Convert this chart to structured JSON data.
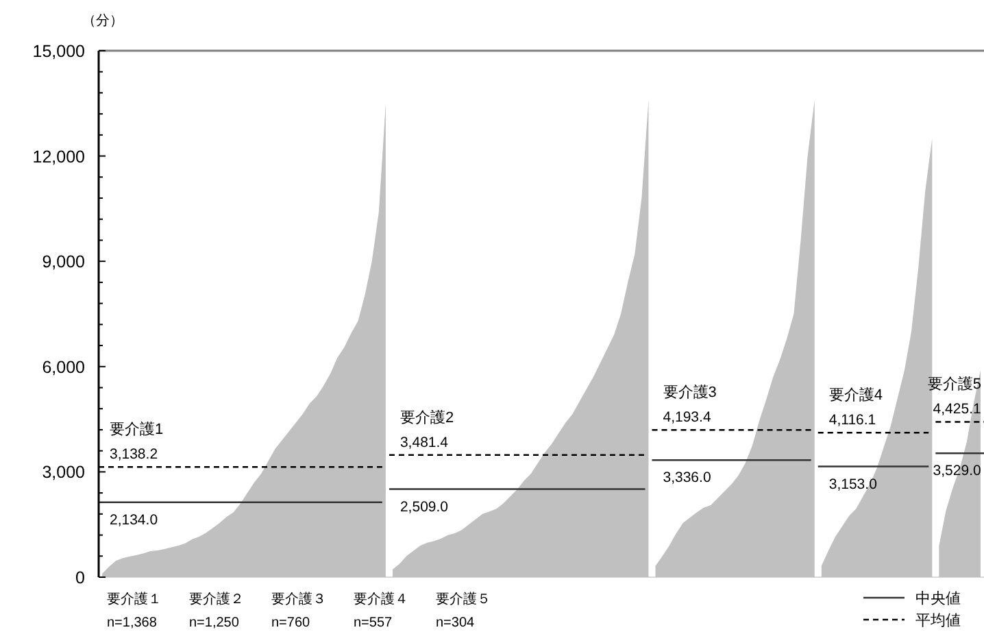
{
  "chart_data": {
    "type": "area",
    "ylabel": "（分）",
    "categories": [
      null,
      null,
      null,
      null,
      null,
      null,
      null,
      null,
      null,
      null,
      null,
      null,
      null,
      null,
      null,
      null,
      null,
      null,
      null,
      null,
      null,
      null,
      null,
      null,
      null,
      null,
      null,
      null,
      null,
      null,
      null,
      null,
      null,
      null,
      null,
      null,
      null,
      null,
      null,
      null,
      null,
      null,
      null,
      null,
      null,
      null,
      null,
      null,
      null,
      null,
      null,
      null,
      null,
      null,
      null,
      null,
      null,
      null,
      null,
      null,
      null,
      null,
      null,
      null,
      null,
      null,
      null,
      null,
      null,
      null,
      null,
      null,
      null,
      null,
      null,
      null,
      null,
      null,
      null,
      null,
      null,
      null,
      null,
      null,
      null,
      null,
      null,
      null,
      null,
      null,
      null,
      null,
      null,
      null,
      null,
      null,
      null,
      null,
      null,
      null,
      null,
      null,
      null,
      null,
      null,
      null,
      null,
      null,
      null,
      null,
      null,
      null,
      null,
      null,
      null,
      null,
      null,
      null,
      null,
      null,
      null,
      null,
      null,
      null,
      null,
      null,
      null,
      null
    ],
    "tick_labels": "y",
    "ylim": [
      0,
      15000
    ],
    "yticks": [
      {
        "value": 0,
        "label": "0"
      },
      {
        "value": 600,
        "label": null
      },
      {
        "value": 1200,
        "label": null
      },
      {
        "value": 1800,
        "label": null
      },
      {
        "value": 2400,
        "label": null
      },
      {
        "value": 3000,
        "label": "3,000"
      },
      {
        "value": 3600,
        "label": null
      },
      {
        "value": 4200,
        "label": null
      },
      {
        "value": 4800,
        "label": null
      },
      {
        "value": 5400,
        "label": null
      },
      {
        "value": 6000,
        "label": "6,000"
      },
      {
        "value": 6600,
        "label": null
      },
      {
        "value": 7200,
        "label": null
      },
      {
        "value": 7800,
        "label": null
      },
      {
        "value": 8400,
        "label": null
      },
      {
        "value": 9000,
        "label": "9,000"
      },
      {
        "value": 9600,
        "label": null
      },
      {
        "value": 10200,
        "label": null
      },
      {
        "value": 10800,
        "label": null
      },
      {
        "value": 11400,
        "label": null
      },
      {
        "value": 12000,
        "label": "12,000"
      },
      {
        "value": 12600,
        "label": null
      },
      {
        "value": 13200,
        "label": null
      },
      {
        "value": 13800,
        "label": null
      },
      {
        "value": 14400,
        "label": null
      },
      {
        "value": 15000,
        "label": "15,000"
      }
    ],
    "legend": "bottom right",
    "series": [
      {
        "color": "#c0c0c0",
        "values": [
          100,
          300,
          470,
          540,
          590,
          630,
          680,
          740,
          760,
          800,
          850,
          900,
          960,
          1080,
          1150,
          1260,
          1400,
          1550,
          1720,
          1850,
          2100,
          2400,
          2700,
          2950,
          3300,
          3650,
          3900,
          4150,
          4400,
          4650,
          4950,
          5150,
          5450,
          5800,
          6250,
          6550,
          6950,
          7300,
          8050,
          9000,
          10400,
          13500,
          null,
          null,
          null,
          null,
          null,
          null,
          null,
          null,
          null,
          null,
          null,
          null,
          null,
          null,
          null,
          null,
          null,
          null,
          null,
          null,
          null,
          null,
          null,
          null,
          null,
          null,
          null,
          null,
          null,
          null,
          null,
          null,
          null,
          null,
          null,
          null,
          null,
          null,
          null,
          null,
          null,
          null,
          null,
          null,
          null,
          null,
          null,
          null,
          null,
          null,
          null,
          null,
          null,
          null,
          null,
          null,
          null,
          null,
          null,
          null,
          null,
          null,
          null,
          null,
          null,
          null,
          null,
          null,
          null,
          null,
          null,
          null,
          null,
          null,
          null,
          null,
          null,
          null,
          null,
          null,
          null,
          null,
          null,
          null,
          null,
          null
        ]
      },
      {
        "color": "#c0c0c0",
        "values": [
          null,
          null,
          null,
          null,
          null,
          null,
          null,
          null,
          null,
          null,
          null,
          null,
          null,
          null,
          null,
          null,
          null,
          null,
          null,
          null,
          null,
          null,
          null,
          null,
          null,
          null,
          null,
          null,
          null,
          null,
          null,
          null,
          null,
          null,
          null,
          null,
          null,
          null,
          null,
          null,
          null,
          null,
          220,
          380,
          600,
          750,
          900,
          980,
          1030,
          1100,
          1200,
          1250,
          1350,
          1500,
          1650,
          1800,
          1870,
          1950,
          2100,
          2300,
          2500,
          2750,
          2950,
          3250,
          3550,
          3800,
          4100,
          4400,
          4650,
          5000,
          5350,
          5700,
          6100,
          6500,
          6900,
          7500,
          8400,
          9200,
          10800,
          13600,
          null,
          null,
          null,
          null,
          null,
          null,
          null,
          null,
          null,
          null,
          null,
          null,
          null,
          null,
          null,
          null,
          null,
          null,
          null,
          null,
          null,
          null,
          null,
          null,
          null,
          null,
          null,
          null,
          null,
          null,
          null,
          null,
          null,
          null,
          null,
          null,
          null,
          null,
          null,
          null,
          null,
          null,
          null,
          null,
          null,
          null,
          null,
          null
        ]
      },
      {
        "color": "#c0c0c0",
        "values": [
          null,
          null,
          null,
          null,
          null,
          null,
          null,
          null,
          null,
          null,
          null,
          null,
          null,
          null,
          null,
          null,
          null,
          null,
          null,
          null,
          null,
          null,
          null,
          null,
          null,
          null,
          null,
          null,
          null,
          null,
          null,
          null,
          null,
          null,
          null,
          null,
          null,
          null,
          null,
          null,
          null,
          null,
          null,
          null,
          null,
          null,
          null,
          null,
          null,
          null,
          null,
          null,
          null,
          null,
          null,
          null,
          null,
          null,
          null,
          null,
          null,
          null,
          null,
          null,
          null,
          null,
          null,
          null,
          null,
          null,
          null,
          null,
          null,
          null,
          null,
          null,
          null,
          null,
          null,
          null,
          320,
          600,
          900,
          1250,
          1550,
          1700,
          1850,
          1980,
          2050,
          2250,
          2450,
          2650,
          2900,
          3250,
          3750,
          4450,
          5050,
          5700,
          6200,
          6800,
          7500,
          9600,
          12000,
          13600,
          null,
          null,
          null,
          null,
          null,
          null,
          null,
          null,
          null,
          null,
          null,
          null,
          null,
          null,
          null,
          null,
          null,
          null,
          null,
          null,
          null,
          null,
          null,
          null
        ]
      },
      {
        "color": "#c0c0c0",
        "values": [
          null,
          null,
          null,
          null,
          null,
          null,
          null,
          null,
          null,
          null,
          null,
          null,
          null,
          null,
          null,
          null,
          null,
          null,
          null,
          null,
          null,
          null,
          null,
          null,
          null,
          null,
          null,
          null,
          null,
          null,
          null,
          null,
          null,
          null,
          null,
          null,
          null,
          null,
          null,
          null,
          null,
          null,
          null,
          null,
          null,
          null,
          null,
          null,
          null,
          null,
          null,
          null,
          null,
          null,
          null,
          null,
          null,
          null,
          null,
          null,
          null,
          null,
          null,
          null,
          null,
          null,
          null,
          null,
          null,
          null,
          null,
          null,
          null,
          null,
          null,
          null,
          null,
          null,
          null,
          null,
          null,
          null,
          null,
          null,
          null,
          null,
          null,
          null,
          null,
          null,
          null,
          null,
          null,
          null,
          null,
          null,
          null,
          null,
          null,
          null,
          null,
          null,
          null,
          null,
          320,
          750,
          1150,
          1450,
          1750,
          1950,
          2300,
          2650,
          3100,
          3700,
          4300,
          5100,
          5900,
          7000,
          8800,
          11000,
          12500,
          null,
          null,
          null,
          null,
          null,
          null,
          null
        ]
      },
      {
        "color": "#c0c0c0",
        "values": [
          null,
          null,
          null,
          null,
          null,
          null,
          null,
          null,
          null,
          null,
          null,
          null,
          null,
          null,
          null,
          null,
          null,
          null,
          null,
          null,
          null,
          null,
          null,
          null,
          null,
          null,
          null,
          null,
          null,
          null,
          null,
          null,
          null,
          null,
          null,
          null,
          null,
          null,
          null,
          null,
          null,
          null,
          null,
          null,
          null,
          null,
          null,
          null,
          null,
          null,
          null,
          null,
          null,
          null,
          null,
          null,
          null,
          null,
          null,
          null,
          null,
          null,
          null,
          null,
          null,
          null,
          null,
          null,
          null,
          null,
          null,
          null,
          null,
          null,
          null,
          null,
          null,
          null,
          null,
          null,
          null,
          null,
          null,
          null,
          null,
          null,
          null,
          null,
          null,
          null,
          null,
          null,
          null,
          null,
          null,
          null,
          null,
          null,
          null,
          null,
          null,
          null,
          null,
          null,
          null,
          null,
          null,
          null,
          null,
          null,
          null,
          null,
          null,
          null,
          null,
          null,
          null,
          null,
          null,
          null,
          null,
          900,
          1900,
          2550,
          3100,
          3850,
          4950,
          5900
        ]
      },
      {
        "name": "中央値",
        "type": "line",
        "line_style": "solid",
        "color": "#333333",
        "values": [
          2134,
          2134,
          2134,
          2134,
          2134,
          2134,
          2134,
          2134,
          2134,
          2134,
          2134,
          2134,
          2134,
          2134,
          2134,
          2134,
          2134,
          2134,
          2134,
          2134,
          2134,
          2134,
          2134,
          2134,
          2134,
          2134,
          2134,
          2134,
          2134,
          2134,
          2134,
          2134,
          2134,
          2134,
          2134,
          2134,
          2134,
          2134,
          2134,
          2134,
          2134,
          null,
          2509,
          2509,
          2509,
          2509,
          2509,
          2509,
          2509,
          2509,
          2509,
          2509,
          2509,
          2509,
          2509,
          2509,
          2509,
          2509,
          2509,
          2509,
          2509,
          2509,
          2509,
          2509,
          2509,
          2509,
          2509,
          2509,
          2509,
          2509,
          2509,
          2509,
          2509,
          2509,
          2509,
          2509,
          2509,
          2509,
          2509,
          null,
          3336,
          3336,
          3336,
          3336,
          3336,
          3336,
          3336,
          3336,
          3336,
          3336,
          3336,
          3336,
          3336,
          3336,
          3336,
          3336,
          3336,
          3336,
          3336,
          3336,
          3336,
          3336,
          3336,
          null,
          3153,
          3153,
          3153,
          3153,
          3153,
          3153,
          3153,
          3153,
          3153,
          3153,
          3153,
          3153,
          3153,
          3153,
          3153,
          3153,
          null,
          3529,
          3529,
          3529,
          3529,
          3529,
          3529,
          3529
        ],
        "value_labels": [
          "2,134.0",
          null,
          null,
          null,
          null,
          null,
          null,
          null,
          null,
          null,
          null,
          null,
          null,
          null,
          null,
          null,
          null,
          null,
          null,
          null,
          null,
          null,
          null,
          null,
          null,
          null,
          null,
          null,
          null,
          null,
          null,
          null,
          null,
          null,
          null,
          null,
          null,
          null,
          null,
          null,
          null,
          null,
          "2,509.0",
          null,
          null,
          null,
          null,
          null,
          null,
          null,
          null,
          null,
          null,
          null,
          null,
          null,
          null,
          null,
          null,
          null,
          null,
          null,
          null,
          null,
          null,
          null,
          null,
          null,
          null,
          null,
          null,
          null,
          null,
          null,
          null,
          null,
          null,
          null,
          null,
          null,
          "3,336.0",
          null,
          null,
          null,
          null,
          null,
          null,
          null,
          null,
          null,
          null,
          null,
          null,
          null,
          null,
          null,
          null,
          null,
          null,
          null,
          null,
          null,
          null,
          null,
          "3,153.0",
          null,
          null,
          null,
          null,
          null,
          null,
          null,
          null,
          null,
          null,
          null,
          null,
          null,
          null,
          null,
          null,
          "3,529.0",
          null,
          null,
          null,
          null,
          null,
          null
        ]
      },
      {
        "name": "平均値",
        "type": "line",
        "line_style": "dashed",
        "color": "#000000",
        "values": [
          3138.2,
          3138.2,
          3138.2,
          3138.2,
          3138.2,
          3138.2,
          3138.2,
          3138.2,
          3138.2,
          3138.2,
          3138.2,
          3138.2,
          3138.2,
          3138.2,
          3138.2,
          3138.2,
          3138.2,
          3138.2,
          3138.2,
          3138.2,
          3138.2,
          3138.2,
          3138.2,
          3138.2,
          3138.2,
          3138.2,
          3138.2,
          3138.2,
          3138.2,
          3138.2,
          3138.2,
          3138.2,
          3138.2,
          3138.2,
          3138.2,
          3138.2,
          3138.2,
          3138.2,
          3138.2,
          3138.2,
          3138.2,
          null,
          3481.4,
          3481.4,
          3481.4,
          3481.4,
          3481.4,
          3481.4,
          3481.4,
          3481.4,
          3481.4,
          3481.4,
          3481.4,
          3481.4,
          3481.4,
          3481.4,
          3481.4,
          3481.4,
          3481.4,
          3481.4,
          3481.4,
          3481.4,
          3481.4,
          3481.4,
          3481.4,
          3481.4,
          3481.4,
          3481.4,
          3481.4,
          3481.4,
          3481.4,
          3481.4,
          3481.4,
          3481.4,
          3481.4,
          3481.4,
          3481.4,
          3481.4,
          3481.4,
          null,
          4193.4,
          4193.4,
          4193.4,
          4193.4,
          4193.4,
          4193.4,
          4193.4,
          4193.4,
          4193.4,
          4193.4,
          4193.4,
          4193.4,
          4193.4,
          4193.4,
          4193.4,
          4193.4,
          4193.4,
          4193.4,
          4193.4,
          4193.4,
          4193.4,
          4193.4,
          4193.4,
          null,
          4116.1,
          4116.1,
          4116.1,
          4116.1,
          4116.1,
          4116.1,
          4116.1,
          4116.1,
          4116.1,
          4116.1,
          4116.1,
          4116.1,
          4116.1,
          4116.1,
          4116.1,
          4116.1,
          null,
          4425.1,
          4425.1,
          4425.1,
          4425.1,
          4425.1,
          4425.1,
          4425.1
        ],
        "value_labels": [
          "3,138.2",
          null,
          null,
          null,
          null,
          null,
          null,
          null,
          null,
          null,
          null,
          null,
          null,
          null,
          null,
          null,
          null,
          null,
          null,
          null,
          null,
          null,
          null,
          null,
          null,
          null,
          null,
          null,
          null,
          null,
          null,
          null,
          null,
          null,
          null,
          null,
          null,
          null,
          null,
          null,
          null,
          null,
          "3,481.4",
          null,
          null,
          null,
          null,
          null,
          null,
          null,
          null,
          null,
          null,
          null,
          null,
          null,
          null,
          null,
          null,
          null,
          null,
          null,
          null,
          null,
          null,
          null,
          null,
          null,
          null,
          null,
          null,
          null,
          null,
          null,
          null,
          null,
          null,
          null,
          null,
          null,
          "4,193.4",
          null,
          null,
          null,
          null,
          null,
          null,
          null,
          null,
          null,
          null,
          null,
          null,
          null,
          null,
          null,
          null,
          null,
          null,
          null,
          null,
          null,
          null,
          null,
          "4,116.1",
          null,
          null,
          null,
          null,
          null,
          null,
          null,
          null,
          null,
          null,
          null,
          null,
          null,
          null,
          null,
          null,
          "4,425.1",
          null,
          null,
          null,
          null,
          null,
          null
        ]
      }
    ],
    "annotations": [
      {
        "text": "要介護1",
        "y": 3138.2
      },
      {
        "text": "要介護2",
        "y": 3481.4
      },
      {
        "text": "要介護3",
        "y": 4193.4
      },
      {
        "text": "要介護4",
        "y": 4116.1
      },
      {
        "text": "要介護5",
        "y": 4425.1
      },
      "要介護１",
      "n=1,368",
      "要介護２",
      "n=1,250",
      "要介護３",
      "n=760",
      "要介護４",
      "n=557",
      "要介護５",
      "n=304"
    ]
  }
}
